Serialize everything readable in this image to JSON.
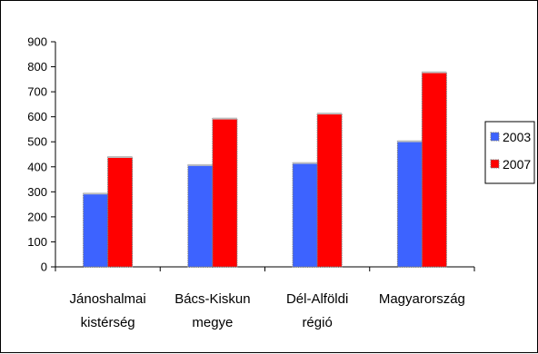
{
  "chart_data": {
    "type": "bar",
    "categories": [
      [
        "Jánoshalmai",
        "kistérség"
      ],
      [
        "Bács-Kiskun",
        "megye"
      ],
      [
        "Dél-Alföldi",
        "régió"
      ],
      [
        "Magyarország"
      ]
    ],
    "series": [
      {
        "name": "2003",
        "color": "#3d63ff",
        "values": [
          293,
          407,
          415,
          502
        ]
      },
      {
        "name": "2007",
        "color": "#ff0000",
        "values": [
          439,
          593,
          613,
          778
        ]
      }
    ],
    "ylim": [
      0,
      900
    ],
    "yticks": [
      "0",
      "100",
      "200",
      "300",
      "400",
      "500",
      "600",
      "700",
      "800",
      "900"
    ],
    "grid": false,
    "legend_position": "right",
    "title": "",
    "xlabel": "",
    "ylabel": ""
  }
}
